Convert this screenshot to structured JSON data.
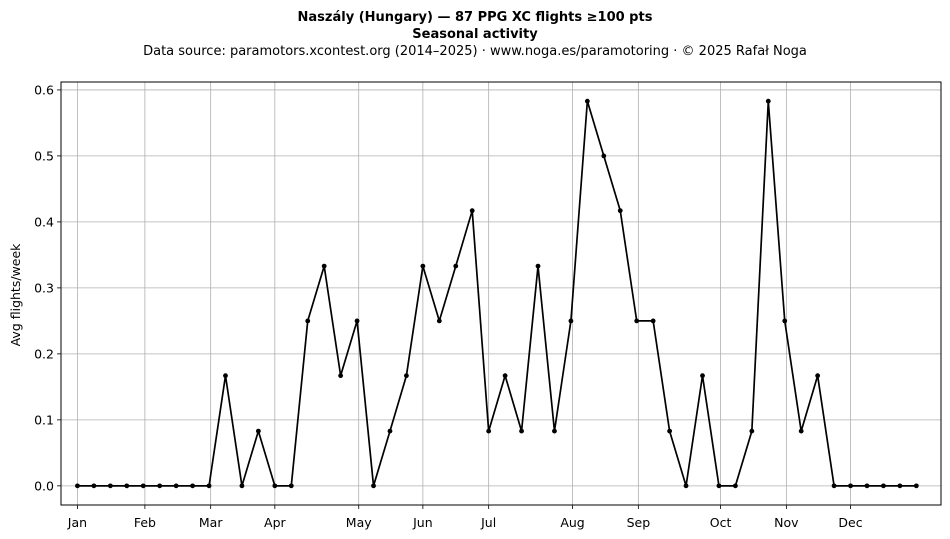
{
  "chart_data": {
    "type": "line",
    "title_line1": "Naszály (Hungary)  —  87 PPG XC flights ≥100 pts",
    "title_line2": "Seasonal activity",
    "subtitle": "Data source: paramotors.xcontest.org (2014–2025)  ·  www.noga.es/paramotoring  ·  © 2025 Rafał Noga",
    "ylabel": "Avg flights/week",
    "xlim": [
      0.0,
      53.5
    ],
    "ylim": [
      -0.029,
      0.612
    ],
    "yticks": [
      {
        "v": 0.0,
        "label": "0.0"
      },
      {
        "v": 0.1,
        "label": "0.1"
      },
      {
        "v": 0.2,
        "label": "0.2"
      },
      {
        "v": 0.3,
        "label": "0.3"
      },
      {
        "v": 0.4,
        "label": "0.4"
      },
      {
        "v": 0.5,
        "label": "0.5"
      },
      {
        "v": 0.6,
        "label": "0.6"
      }
    ],
    "xticks": [
      {
        "week": 1.0,
        "label": "Jan"
      },
      {
        "week": 5.1,
        "label": "Feb"
      },
      {
        "week": 9.1,
        "label": "Mar"
      },
      {
        "week": 13.0,
        "label": "Apr"
      },
      {
        "week": 18.1,
        "label": "May"
      },
      {
        "week": 22.0,
        "label": "Jun"
      },
      {
        "week": 26.0,
        "label": "Jul"
      },
      {
        "week": 31.1,
        "label": "Aug"
      },
      {
        "week": 35.1,
        "label": "Sep"
      },
      {
        "week": 40.1,
        "label": "Oct"
      },
      {
        "week": 44.1,
        "label": "Nov"
      },
      {
        "week": 48.0,
        "label": "Dec"
      }
    ],
    "grid": true,
    "series": [
      {
        "color": "#000000",
        "x": [
          1,
          2,
          3,
          4,
          5,
          6,
          7,
          8,
          9,
          10,
          11,
          12,
          13,
          14,
          15,
          16,
          17,
          18,
          19,
          20,
          21,
          22,
          23,
          24,
          25,
          26,
          27,
          28,
          29,
          30,
          31,
          32,
          33,
          34,
          35,
          36,
          37,
          38,
          39,
          40,
          41,
          42,
          43,
          44,
          45,
          46,
          47,
          48,
          49,
          50,
          51,
          52
        ],
        "values": [
          0,
          0,
          0,
          0,
          0,
          0,
          0,
          0,
          0,
          0.167,
          0,
          0.083,
          0,
          0,
          0.25,
          0.333,
          0.167,
          0.25,
          0,
          0.083,
          0.167,
          0.333,
          0.25,
          0.333,
          0.417,
          0.083,
          0.167,
          0.083,
          0.333,
          0.083,
          0.25,
          0.583,
          0.5,
          0.417,
          0.25,
          0.25,
          0.083,
          0,
          0.167,
          0,
          0,
          0.083,
          0.583,
          0.25,
          0.083,
          0.167,
          0,
          0,
          0,
          0,
          0,
          0
        ]
      }
    ]
  }
}
